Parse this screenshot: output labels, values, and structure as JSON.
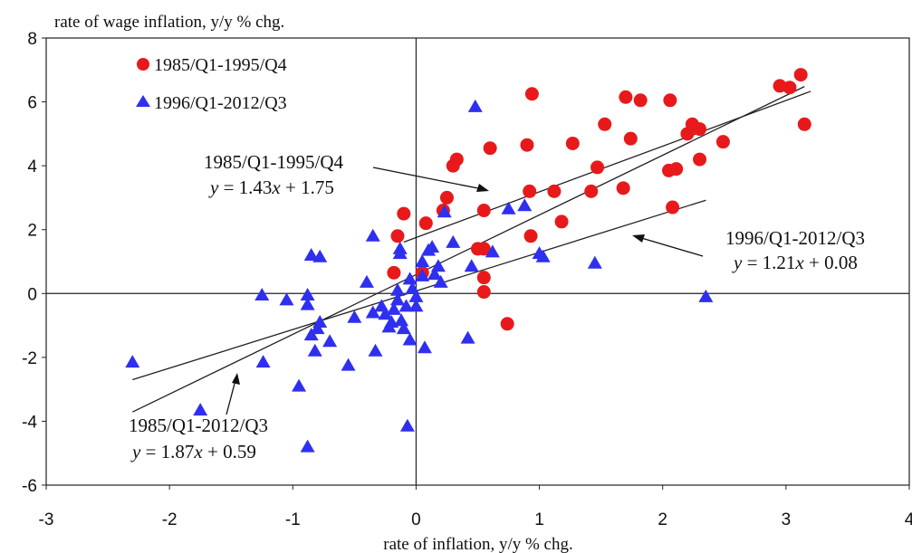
{
  "chart_data": {
    "type": "scatter",
    "title": "",
    "ylabel": "rate of wage inflation, y/y % chg.",
    "xlabel": "rate of inflation, y/y % chg.",
    "xlim": [
      -3,
      4
    ],
    "ylim": [
      -6,
      8
    ],
    "xticks": [
      "-3",
      "-2",
      "-1",
      "0",
      "1",
      "2",
      "3",
      "4"
    ],
    "yticks": [
      "-6",
      "-4",
      "-2",
      "0",
      "2",
      "4",
      "6",
      "8"
    ],
    "grid": false,
    "legend_position": "top-left",
    "series": [
      {
        "name": "1985/Q1-1995/Q4",
        "marker": "circle",
        "color": "#e8191b",
        "points": [
          [
            -0.1,
            2.5
          ],
          [
            0.08,
            2.2
          ],
          [
            0.22,
            2.6
          ],
          [
            0.25,
            3.0
          ],
          [
            0.3,
            4.0
          ],
          [
            0.33,
            4.2
          ],
          [
            0.55,
            2.6
          ],
          [
            0.6,
            4.55
          ],
          [
            0.5,
            1.4
          ],
          [
            0.55,
            1.4
          ],
          [
            0.55,
            0.5
          ],
          [
            0.55,
            0.05
          ],
          [
            0.74,
            -0.95
          ],
          [
            -0.15,
            1.8
          ],
          [
            -0.18,
            0.65
          ],
          [
            0.05,
            0.65
          ],
          [
            0.9,
            4.65
          ],
          [
            0.92,
            3.2
          ],
          [
            0.93,
            1.8
          ],
          [
            0.94,
            6.25
          ],
          [
            1.12,
            3.2
          ],
          [
            1.18,
            2.25
          ],
          [
            1.27,
            4.7
          ],
          [
            1.42,
            3.2
          ],
          [
            1.47,
            3.95
          ],
          [
            1.53,
            5.3
          ],
          [
            1.68,
            3.3
          ],
          [
            1.7,
            6.15
          ],
          [
            1.74,
            4.85
          ],
          [
            1.82,
            6.05
          ],
          [
            2.06,
            6.05
          ],
          [
            2.05,
            3.85
          ],
          [
            2.11,
            3.9
          ],
          [
            2.08,
            2.7
          ],
          [
            2.2,
            5.0
          ],
          [
            2.24,
            5.3
          ],
          [
            2.3,
            5.15
          ],
          [
            2.3,
            4.2
          ],
          [
            2.49,
            4.75
          ],
          [
            2.95,
            6.5
          ],
          [
            3.03,
            6.45
          ],
          [
            3.12,
            6.85
          ],
          [
            3.15,
            5.3
          ]
        ]
      },
      {
        "name": "1996/Q1-2012/Q3",
        "marker": "triangle",
        "color": "#2f2ff0",
        "points": [
          [
            -2.3,
            -2.15
          ],
          [
            -1.75,
            -3.65
          ],
          [
            -1.24,
            -2.15
          ],
          [
            -1.25,
            -0.05
          ],
          [
            -1.05,
            -0.2
          ],
          [
            -0.95,
            -2.9
          ],
          [
            -0.88,
            -4.8
          ],
          [
            -0.88,
            -0.05
          ],
          [
            -0.88,
            -0.35
          ],
          [
            -0.85,
            -1.3
          ],
          [
            -0.82,
            -1.8
          ],
          [
            -0.8,
            -1.1
          ],
          [
            -0.78,
            -0.9
          ],
          [
            -0.85,
            1.2
          ],
          [
            -0.78,
            1.15
          ],
          [
            -0.7,
            -1.5
          ],
          [
            -0.55,
            -2.25
          ],
          [
            -0.5,
            -0.75
          ],
          [
            -0.4,
            0.35
          ],
          [
            -0.35,
            -0.6
          ],
          [
            -0.35,
            1.8
          ],
          [
            -0.33,
            -1.8
          ],
          [
            -0.28,
            -0.4
          ],
          [
            -0.25,
            -0.65
          ],
          [
            -0.22,
            -1.05
          ],
          [
            -0.2,
            -0.9
          ],
          [
            -0.18,
            -0.5
          ],
          [
            -0.15,
            -0.2
          ],
          [
            -0.15,
            0.1
          ],
          [
            -0.13,
            1.4
          ],
          [
            -0.13,
            1.25
          ],
          [
            -0.12,
            -0.85
          ],
          [
            -0.1,
            -1.1
          ],
          [
            -0.08,
            -0.4
          ],
          [
            -0.07,
            -4.15
          ],
          [
            -0.05,
            0.45
          ],
          [
            -0.05,
            -1.45
          ],
          [
            -0.03,
            0.15
          ],
          [
            0.0,
            -0.4
          ],
          [
            0.0,
            -0.1
          ],
          [
            0.05,
            0.55
          ],
          [
            0.05,
            1.0
          ],
          [
            0.07,
            -1.7
          ],
          [
            0.1,
            1.35
          ],
          [
            0.13,
            1.45
          ],
          [
            0.15,
            0.6
          ],
          [
            0.18,
            0.85
          ],
          [
            0.2,
            0.35
          ],
          [
            0.23,
            2.55
          ],
          [
            0.3,
            1.6
          ],
          [
            0.42,
            -1.4
          ],
          [
            0.45,
            0.85
          ],
          [
            0.48,
            5.85
          ],
          [
            0.62,
            1.3
          ],
          [
            0.75,
            2.65
          ],
          [
            0.88,
            2.75
          ],
          [
            1.0,
            1.25
          ],
          [
            1.03,
            1.15
          ],
          [
            1.45,
            0.95
          ],
          [
            2.35,
            -0.1
          ]
        ]
      }
    ],
    "fit_lines": [
      {
        "period": "1985/Q1-1995/Q4",
        "equation": "= 1.43",
        "from": [
          -0.1,
          1.61
        ],
        "to": [
          3.2,
          6.33
        ]
      },
      {
        "period": "1996/Q1-2012/Q3",
        "equation": "= 1.21",
        "from": [
          -2.3,
          -2.7
        ],
        "to": [
          2.35,
          2.92
        ]
      },
      {
        "period": "1985/Q1-2012/Q3",
        "equation": "= 1.87",
        "from": [
          -2.3,
          -3.71
        ],
        "to": [
          3.15,
          6.48
        ]
      }
    ],
    "annotations": [
      {
        "label": "1985/Q1-1995/Q4",
        "y_var": "y",
        "eq_a": " = 1.43",
        "x_var": "x",
        "eq_b": " + 1.75"
      },
      {
        "label": "1996/Q1-2012/Q3",
        "y_var": "y",
        "eq_a": " = 1.21",
        "x_var": "x",
        "eq_b": " + 0.08"
      },
      {
        "label": "1985/Q1-2012/Q3",
        "y_var": "y",
        "eq_a": " = 1.87",
        "x_var": "x",
        "eq_b": " + 0.59"
      }
    ]
  }
}
